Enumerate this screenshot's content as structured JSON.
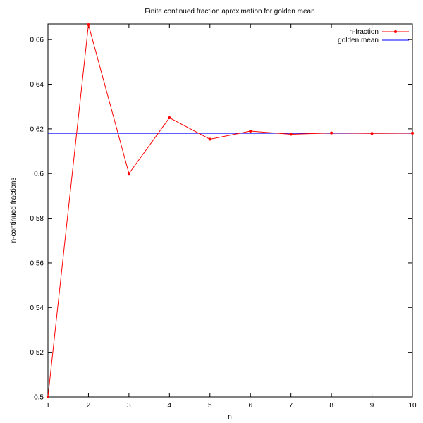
{
  "chart_data": {
    "type": "line",
    "title": "Finite continued fraction aproximation for golden mean",
    "xlabel": "n",
    "ylabel": "n-continued fractions",
    "xlim": [
      1,
      10
    ],
    "ylim": [
      0.5,
      0.667
    ],
    "xticks": [
      "1",
      "2",
      "3",
      "4",
      "5",
      "6",
      "7",
      "8",
      "9",
      "10"
    ],
    "yticks": [
      "0.5",
      "0.52",
      "0.54",
      "0.56",
      "0.58",
      "0.6",
      "0.62",
      "0.64",
      "0.66"
    ],
    "grid": false,
    "legend_position": "top-right",
    "series": [
      {
        "name": "n-fraction",
        "color": "#ff0000",
        "x": [
          1,
          2,
          3,
          4,
          5,
          6,
          7,
          8,
          9,
          10
        ],
        "values": [
          0.5,
          0.6667,
          0.6,
          0.625,
          0.6154,
          0.619,
          0.6176,
          0.6182,
          0.618,
          0.6181
        ]
      },
      {
        "name": "golden mean",
        "color": "#0000ff",
        "x": [
          1,
          10
        ],
        "values": [
          0.618034,
          0.618034
        ]
      }
    ]
  }
}
